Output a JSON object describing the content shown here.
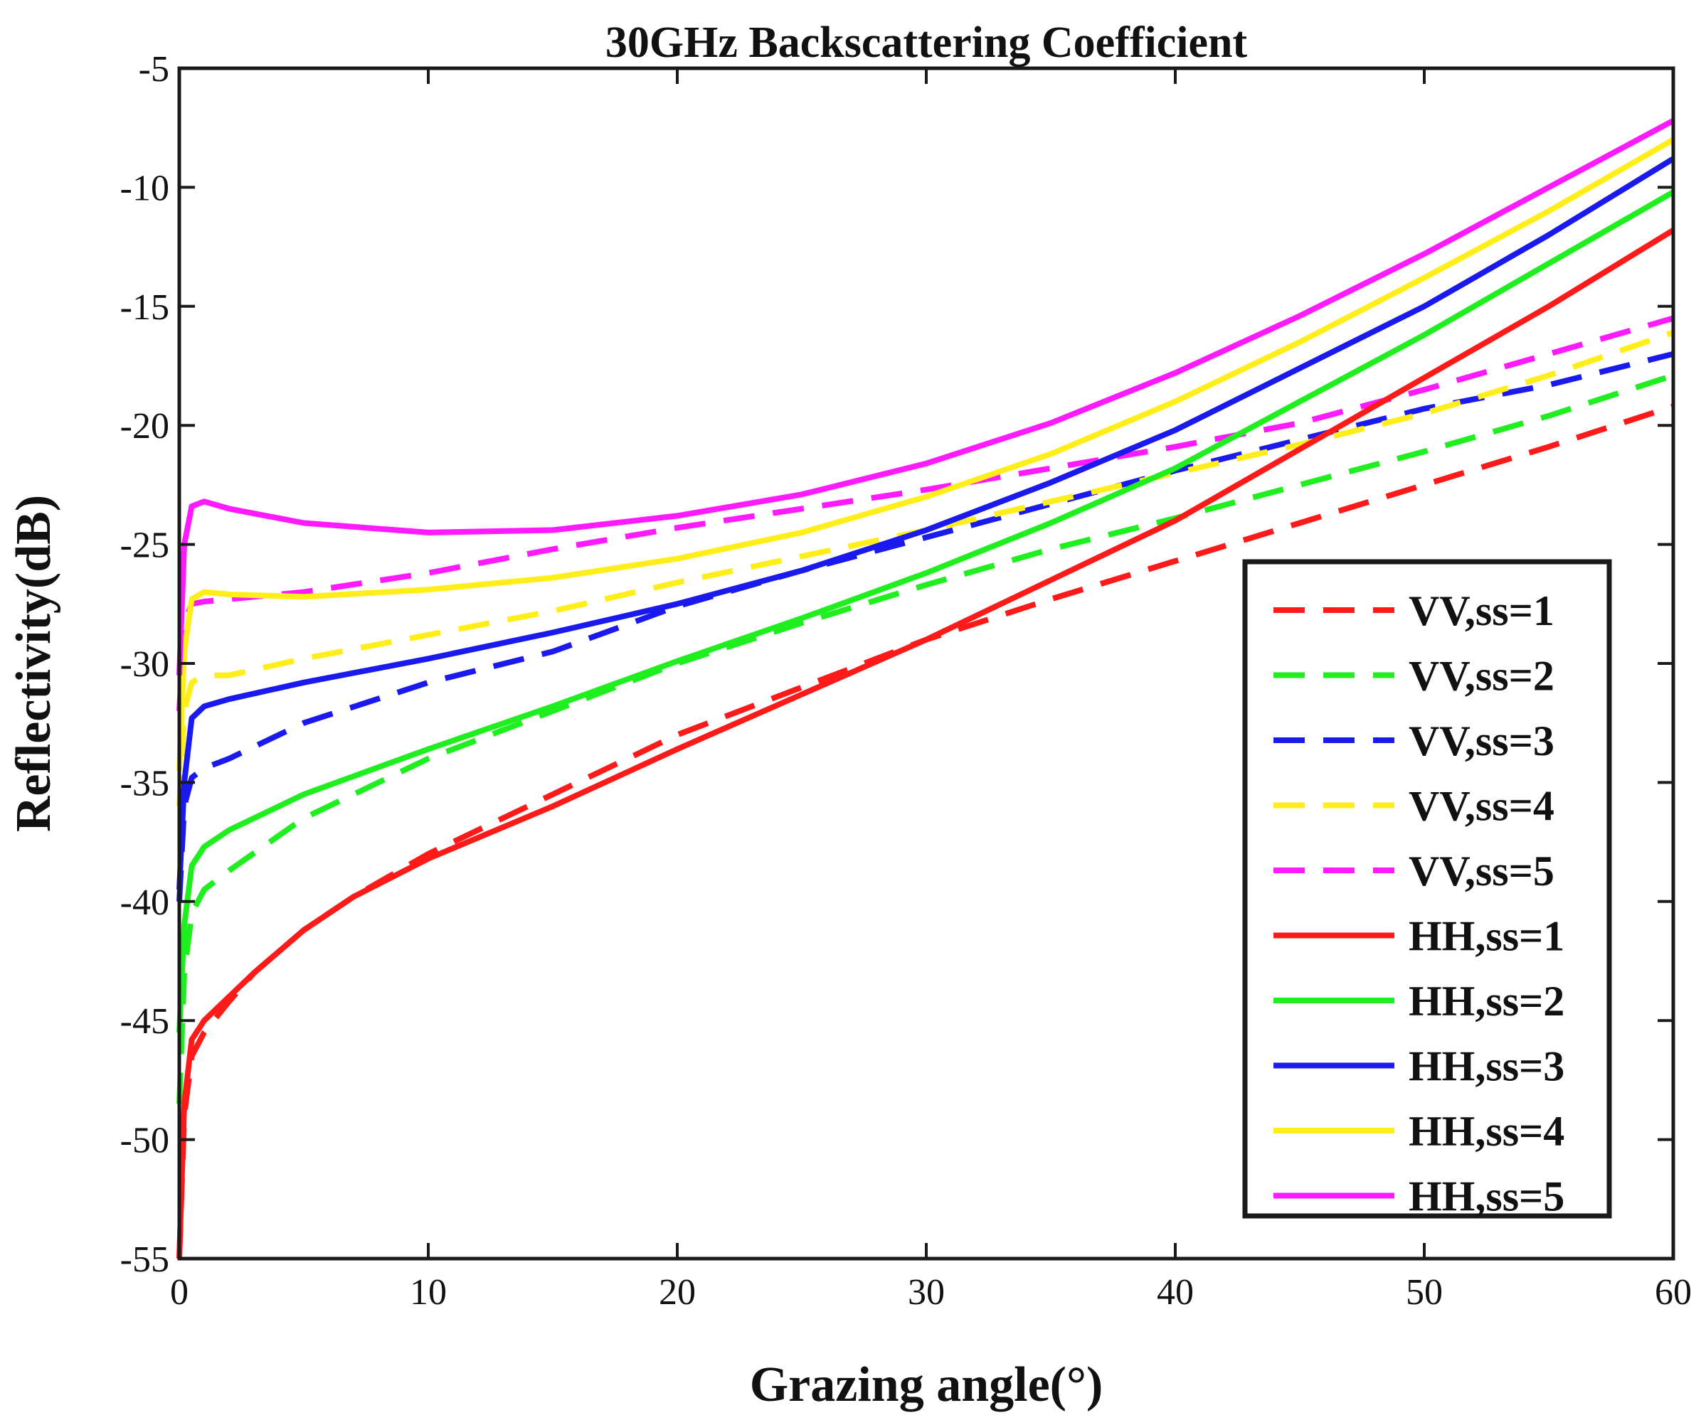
{
  "chart_data": {
    "type": "line",
    "title": "30GHz Backscattering Coefficient",
    "xlabel": "Grazing angle(°)",
    "ylabel": "Reflectivity(dB)",
    "xlim": [
      0,
      60
    ],
    "ylim": [
      -55,
      -5
    ],
    "xticks": [
      0,
      10,
      20,
      30,
      40,
      50,
      60
    ],
    "yticks": [
      -55,
      -50,
      -45,
      -40,
      -35,
      -30,
      -25,
      -20,
      -15,
      -10,
      -5
    ],
    "x_tick_labels": [
      "0",
      "10",
      "20",
      "30",
      "40",
      "50",
      "60"
    ],
    "y_tick_labels": [
      "-55",
      "-50",
      "-45",
      "-40",
      "-35",
      "-30",
      "-25",
      "-20",
      "-15",
      "-10",
      "-5"
    ],
    "grid": false,
    "legend_position": "lower-right",
    "series": [
      {
        "name": "VV,ss=1",
        "color": "#ff1a1a",
        "style": "dashed",
        "points": [
          [
            0,
            -55
          ],
          [
            0.2,
            -49
          ],
          [
            0.5,
            -46.5
          ],
          [
            1,
            -45.5
          ],
          [
            2,
            -44.2
          ],
          [
            3,
            -43
          ],
          [
            5,
            -41.2
          ],
          [
            7,
            -39.8
          ],
          [
            10,
            -38
          ],
          [
            15,
            -35.5
          ],
          [
            20,
            -33
          ],
          [
            25,
            -31
          ],
          [
            30,
            -29
          ],
          [
            35,
            -27.3
          ],
          [
            40,
            -25.7
          ],
          [
            45,
            -24.1
          ],
          [
            50,
            -22.5
          ],
          [
            55,
            -20.9
          ],
          [
            60,
            -19.2
          ]
        ]
      },
      {
        "name": "VV,ss=2",
        "color": "#1fee1f",
        "style": "dashed",
        "points": [
          [
            0,
            -48.5
          ],
          [
            0.2,
            -43
          ],
          [
            0.5,
            -40.5
          ],
          [
            1,
            -39.5
          ],
          [
            2,
            -38.7
          ],
          [
            5,
            -36.5
          ],
          [
            10,
            -34
          ],
          [
            15,
            -32
          ],
          [
            20,
            -30
          ],
          [
            25,
            -28.3
          ],
          [
            30,
            -26.7
          ],
          [
            35,
            -25.2
          ],
          [
            40,
            -23.9
          ],
          [
            45,
            -22.5
          ],
          [
            50,
            -21.1
          ],
          [
            55,
            -19.6
          ],
          [
            60,
            -17.9
          ]
        ]
      },
      {
        "name": "VV,ss=3",
        "color": "#1a1aee",
        "style": "dashed",
        "points": [
          [
            0,
            -40
          ],
          [
            0.2,
            -36
          ],
          [
            0.5,
            -34.8
          ],
          [
            1,
            -34.4
          ],
          [
            2,
            -34
          ],
          [
            5,
            -32.5
          ],
          [
            10,
            -30.8
          ],
          [
            15,
            -29.5
          ],
          [
            20,
            -27.6
          ],
          [
            25,
            -26.1
          ],
          [
            30,
            -24.7
          ],
          [
            35,
            -23.3
          ],
          [
            40,
            -21.9
          ],
          [
            45,
            -20.6
          ],
          [
            50,
            -19.3
          ],
          [
            55,
            -18.3
          ],
          [
            60,
            -17
          ]
        ]
      },
      {
        "name": "VV,ss=4",
        "color": "#ffee1a",
        "style": "dashed",
        "points": [
          [
            0,
            -36
          ],
          [
            0.2,
            -32
          ],
          [
            0.5,
            -30.8
          ],
          [
            1,
            -30.5
          ],
          [
            2,
            -30.5
          ],
          [
            5,
            -29.8
          ],
          [
            10,
            -28.8
          ],
          [
            15,
            -27.8
          ],
          [
            20,
            -26.6
          ],
          [
            25,
            -25.5
          ],
          [
            30,
            -24.4
          ],
          [
            35,
            -23.2
          ],
          [
            40,
            -22
          ],
          [
            45,
            -20.8
          ],
          [
            50,
            -19.5
          ],
          [
            55,
            -17.9
          ],
          [
            60,
            -16.1
          ]
        ]
      },
      {
        "name": "VV,ss=5",
        "color": "#ff1aff",
        "style": "dashed",
        "points": [
          [
            0,
            -32
          ],
          [
            0.2,
            -28.3
          ],
          [
            0.5,
            -27.5
          ],
          [
            1,
            -27.4
          ],
          [
            2,
            -27.3
          ],
          [
            5,
            -27
          ],
          [
            10,
            -26.2
          ],
          [
            15,
            -25.2
          ],
          [
            20,
            -24.3
          ],
          [
            25,
            -23.5
          ],
          [
            30,
            -22.7
          ],
          [
            35,
            -21.8
          ],
          [
            40,
            -20.9
          ],
          [
            45,
            -19.9
          ],
          [
            50,
            -18.5
          ],
          [
            55,
            -17
          ],
          [
            60,
            -15.5
          ]
        ]
      },
      {
        "name": "HH,ss=1",
        "color": "#ff1a1a",
        "style": "solid",
        "points": [
          [
            0,
            -55
          ],
          [
            0.2,
            -48.5
          ],
          [
            0.5,
            -45.8
          ],
          [
            1,
            -45
          ],
          [
            2,
            -44
          ],
          [
            3,
            -43
          ],
          [
            5,
            -41.2
          ],
          [
            7,
            -39.8
          ],
          [
            10,
            -38.2
          ],
          [
            15,
            -36
          ],
          [
            20,
            -33.6
          ],
          [
            25,
            -31.3
          ],
          [
            30,
            -29
          ],
          [
            35,
            -26.5
          ],
          [
            40,
            -24
          ],
          [
            45,
            -21
          ],
          [
            50,
            -18
          ],
          [
            55,
            -15
          ],
          [
            60,
            -11.8
          ]
        ]
      },
      {
        "name": "HH,ss=2",
        "color": "#1fee1f",
        "style": "solid",
        "points": [
          [
            0,
            -45.5
          ],
          [
            0.2,
            -41
          ],
          [
            0.5,
            -38.5
          ],
          [
            1,
            -37.7
          ],
          [
            2,
            -37
          ],
          [
            5,
            -35.5
          ],
          [
            10,
            -33.6
          ],
          [
            15,
            -31.8
          ],
          [
            20,
            -29.9
          ],
          [
            25,
            -28.1
          ],
          [
            30,
            -26.2
          ],
          [
            35,
            -24.1
          ],
          [
            40,
            -21.8
          ],
          [
            45,
            -19
          ],
          [
            50,
            -16.2
          ],
          [
            55,
            -13.2
          ],
          [
            60,
            -10.2
          ]
        ]
      },
      {
        "name": "HH,ss=3",
        "color": "#1a1aee",
        "style": "solid",
        "points": [
          [
            0,
            -39.5
          ],
          [
            0.2,
            -35
          ],
          [
            0.5,
            -32.3
          ],
          [
            1,
            -31.8
          ],
          [
            2,
            -31.5
          ],
          [
            5,
            -30.8
          ],
          [
            10,
            -29.8
          ],
          [
            15,
            -28.7
          ],
          [
            20,
            -27.5
          ],
          [
            25,
            -26.1
          ],
          [
            30,
            -24.4
          ],
          [
            35,
            -22.4
          ],
          [
            40,
            -20.2
          ],
          [
            45,
            -17.6
          ],
          [
            50,
            -15
          ],
          [
            55,
            -12
          ],
          [
            60,
            -8.8
          ]
        ]
      },
      {
        "name": "HH,ss=4",
        "color": "#ffee1a",
        "style": "solid",
        "points": [
          [
            0,
            -34.5
          ],
          [
            0.2,
            -29.5
          ],
          [
            0.5,
            -27.3
          ],
          [
            1,
            -27
          ],
          [
            2,
            -27.1
          ],
          [
            5,
            -27.2
          ],
          [
            10,
            -26.9
          ],
          [
            15,
            -26.4
          ],
          [
            20,
            -25.6
          ],
          [
            25,
            -24.5
          ],
          [
            30,
            -23
          ],
          [
            35,
            -21.2
          ],
          [
            40,
            -19
          ],
          [
            45,
            -16.5
          ],
          [
            50,
            -13.8
          ],
          [
            55,
            -11
          ],
          [
            60,
            -8
          ]
        ]
      },
      {
        "name": "HH,ss=5",
        "color": "#ff1aff",
        "style": "solid",
        "points": [
          [
            0,
            -30.5
          ],
          [
            0.2,
            -25
          ],
          [
            0.5,
            -23.4
          ],
          [
            1,
            -23.2
          ],
          [
            2,
            -23.5
          ],
          [
            5,
            -24.1
          ],
          [
            10,
            -24.5
          ],
          [
            15,
            -24.4
          ],
          [
            20,
            -23.8
          ],
          [
            25,
            -22.9
          ],
          [
            30,
            -21.6
          ],
          [
            35,
            -19.9
          ],
          [
            40,
            -17.8
          ],
          [
            45,
            -15.4
          ],
          [
            50,
            -12.8
          ],
          [
            55,
            -10
          ],
          [
            60,
            -7.2
          ]
        ]
      }
    ]
  }
}
